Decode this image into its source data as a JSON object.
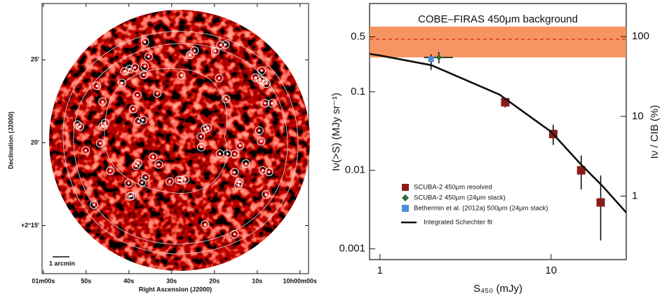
{
  "chart_data": [
    {
      "type": "image",
      "xlabel": "Right Ascension (J2000)",
      "ylabel": "Declination (J2000)",
      "xlim": [
        60.3,
        -2.0
      ],
      "ylim": [
        12.1,
        28.4
      ],
      "xticks": [
        {
          "value": 60,
          "label": "01m00s"
        },
        {
          "value": 50,
          "label": "50s"
        },
        {
          "value": 40,
          "label": "40s"
        },
        {
          "value": 30,
          "label": "30s"
        },
        {
          "value": 20,
          "label": "20s"
        },
        {
          "value": 10,
          "label": "10s"
        },
        {
          "value": 0,
          "label": "10h00m00s"
        }
      ],
      "yticks": [
        {
          "value": 15,
          "label": "+2°15'"
        },
        {
          "value": 20,
          "label": "20'"
        },
        {
          "value": 25,
          "label": "25'"
        }
      ],
      "scale_bar": "1 arcmin"
    },
    {
      "type": "scatter",
      "xlabel": "S₄₅₀ (mJy)",
      "ylabel": "Iν(>S) (MJy sr⁻¹)",
      "y2label": "Iν / CIB (%)",
      "xscale": "log",
      "yscale": "log",
      "xlim": [
        0.87,
        27.5
      ],
      "ylim": [
        0.00073,
        1.33
      ],
      "y2lim": [
        0.16,
        260
      ],
      "xticks": [
        1,
        10
      ],
      "yticks": [
        0.001,
        0.01,
        0.1,
        0.5
      ],
      "y2ticks": [
        1,
        10,
        100
      ],
      "legend": "lower left",
      "band": {
        "label": "COBE–FIRAS 450μm background",
        "range": [
          0.274,
          0.676
        ],
        "line": 0.467,
        "color": "#f58a50",
        "line_color": "#d42a1a"
      },
      "series": [
        {
          "name": "SCUBA-2 450μm resolved",
          "marker": "square",
          "color": "#8b1c1c",
          "x": [
            5.4,
            10.3,
            15.0,
            19.5
          ],
          "values": [
            0.0735,
            0.029,
            0.01,
            0.0039
          ],
          "y_lower": [
            0.063,
            0.021,
            0.0057,
            0.00128
          ],
          "y_upper": [
            0.081,
            0.038,
            0.0154,
            0.0086
          ]
        },
        {
          "name": "SCUBA-2 450μm (24μm stack)",
          "marker": "diamond",
          "color": "#2e6b3a",
          "x": [
            2.21
          ],
          "values": [
            0.274
          ],
          "y_lower": [
            0.23
          ],
          "y_upper": [
            0.32
          ],
          "x_lower": [
            1.81
          ],
          "x_upper": [
            2.67
          ]
        },
        {
          "name": "Bethermin et al. (2012a) 500μm (24μm stack)",
          "marker": "square",
          "color": "#4a8fd6",
          "x": [
            1.99
          ],
          "values": [
            0.26
          ],
          "y_lower": [
            0.19
          ],
          "y_upper": [
            0.3
          ]
        },
        {
          "name": "Integrated Schechter fit",
          "marker": "line",
          "color": "#111111",
          "x": [
            0.87,
            1,
            2,
            5,
            10,
            15,
            20,
            27.5
          ],
          "values": [
            0.304,
            0.29,
            0.218,
            0.092,
            0.031,
            0.0118,
            0.0063,
            0.0029
          ]
        }
      ]
    }
  ]
}
